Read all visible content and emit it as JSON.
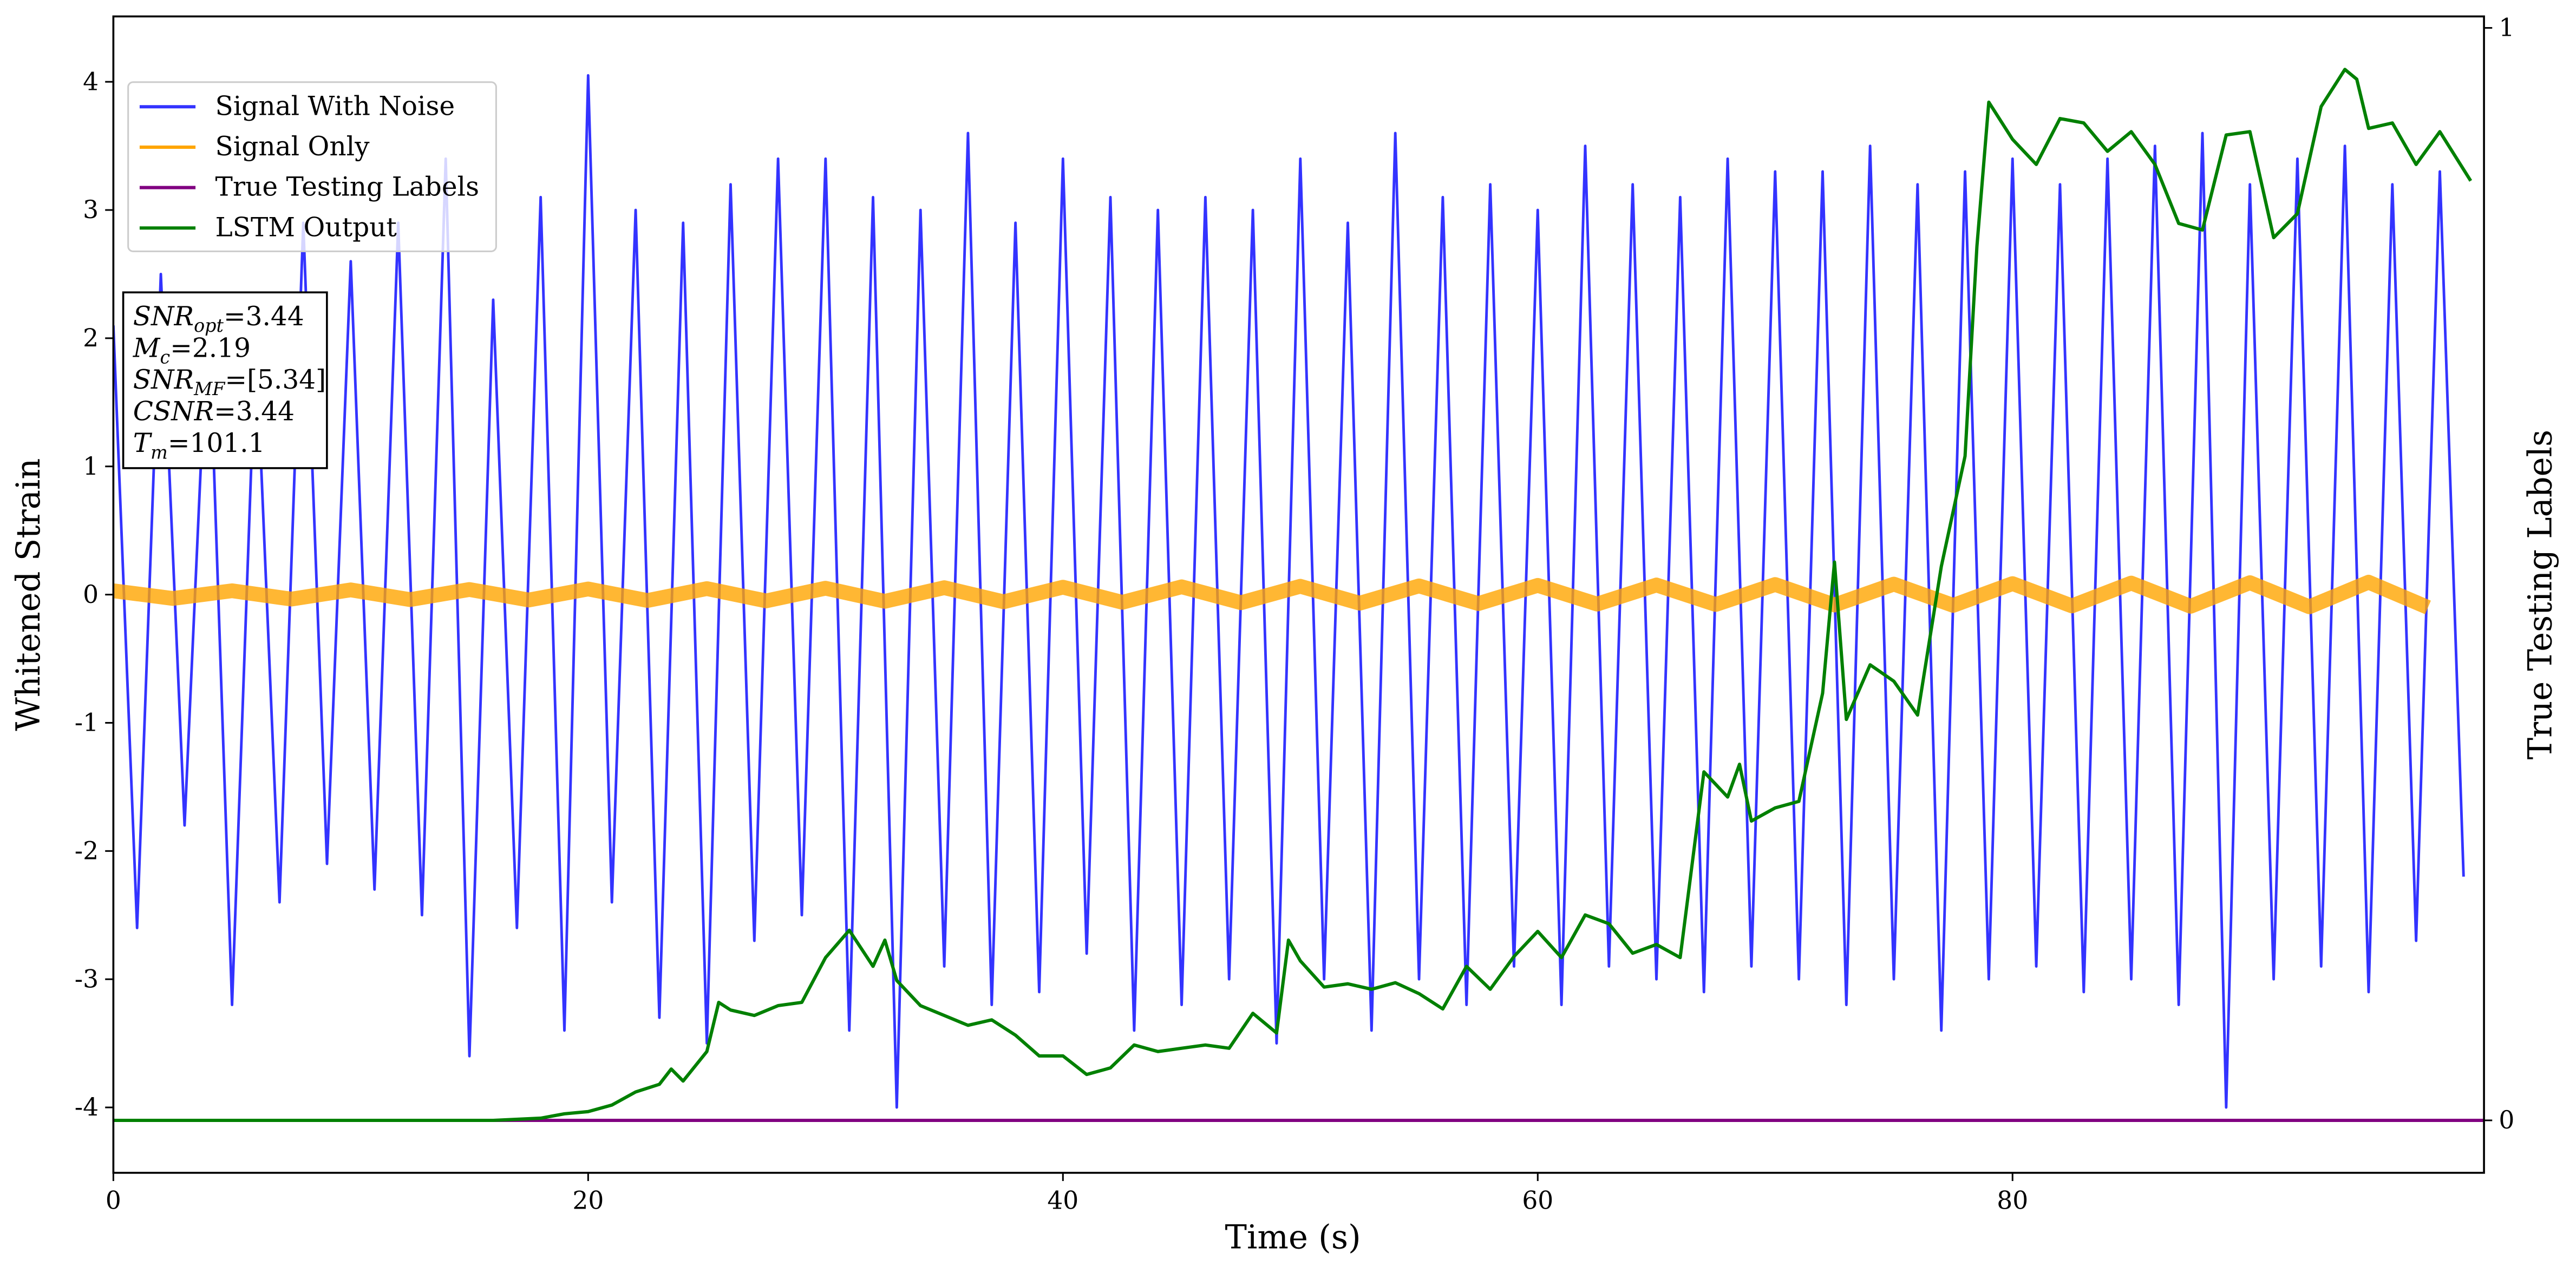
{
  "chart_data": {
    "type": "line",
    "xlabel": "Time (s)",
    "ylabel": "Whitened Strain",
    "y2label": "True Testing Labels",
    "xlim": [
      0,
      99.86
    ],
    "xticks": [
      0,
      20,
      40,
      60,
      80
    ],
    "ylim": [
      -4.51,
      4.51
    ],
    "yticks": [
      -4,
      -3,
      -2,
      -1,
      0,
      1,
      2,
      3,
      4
    ],
    "y2lim": [
      -0.048,
      1.0105
    ],
    "y2ticks": [
      0,
      1
    ],
    "legend": "upper left",
    "annotations": [
      {
        "name": "SNR",
        "sub": "opt",
        "value": "=3.44"
      },
      {
        "name": "M",
        "sub": "c",
        "value": "=2.19"
      },
      {
        "name": "SNR",
        "sub": "MF",
        "value": "=[5.34]"
      },
      {
        "name": "CSNR",
        "value": "=3.44"
      },
      {
        "name": "T",
        "sub": "m",
        "value": "=101.1"
      }
    ],
    "series": [
      {
        "name": "Signal With Noise",
        "color": "#3333ff",
        "x": [
          0,
          1,
          2,
          3,
          4,
          5,
          6,
          7,
          8,
          9,
          10,
          11,
          12,
          13,
          14,
          15,
          16,
          17,
          18,
          19,
          20,
          21,
          22,
          23,
          24,
          25,
          26,
          27,
          28,
          29,
          30,
          31,
          32,
          33,
          34,
          35,
          36,
          37,
          38,
          39,
          40,
          41,
          42,
          43,
          44,
          45,
          46,
          47,
          48,
          49,
          50,
          51,
          52,
          53,
          54,
          55,
          56,
          57,
          58,
          59,
          60,
          61,
          62,
          63,
          64,
          65,
          66,
          67,
          68,
          69,
          70,
          71,
          72,
          73,
          74,
          75,
          76,
          77,
          78,
          79,
          80,
          81,
          82,
          83,
          84,
          85,
          86,
          87,
          88,
          89,
          90,
          91,
          92,
          93,
          94,
          95,
          96,
          97,
          98,
          99
        ],
        "values": [
          2.1,
          -2.6,
          2.5,
          -1.8,
          2.3,
          -3.2,
          2.0,
          -2.4,
          2.9,
          -2.1,
          2.6,
          -2.3,
          2.9,
          -2.5,
          3.4,
          -3.6,
          2.3,
          -2.6,
          3.1,
          -3.4,
          4.05,
          -2.4,
          3.0,
          -3.3,
          2.9,
          -3.5,
          3.2,
          -2.7,
          3.4,
          -2.5,
          3.4,
          -3.4,
          3.1,
          -4.0,
          3.0,
          -2.9,
          3.6,
          -3.2,
          2.9,
          -3.1,
          3.4,
          -2.8,
          3.1,
          -3.4,
          3.0,
          -3.2,
          3.1,
          -3.0,
          3.0,
          -3.5,
          3.4,
          -3.0,
          2.9,
          -3.4,
          3.6,
          -3.0,
          3.1,
          -3.2,
          3.2,
          -2.9,
          3.0,
          -3.2,
          3.5,
          -2.9,
          3.2,
          -3.0,
          3.1,
          -3.1,
          3.4,
          -2.9,
          3.3,
          -3.0,
          3.3,
          -3.2,
          3.5,
          -3.0,
          3.2,
          -3.4,
          3.3,
          -3.0,
          3.4,
          -2.9,
          3.2,
          -3.1,
          3.4,
          -3.0,
          3.5,
          -3.2,
          3.6,
          -4.0,
          3.2,
          -3.0,
          3.4,
          -2.9,
          3.5,
          -3.1,
          3.2,
          -2.7,
          3.3,
          -2.2
        ]
      },
      {
        "name": "Signal Only",
        "color": "#ffa500",
        "x": [
          0,
          2.5,
          5,
          7.5,
          10,
          12.5,
          15,
          17.5,
          20,
          22.5,
          25,
          27.5,
          30,
          32.5,
          35,
          37.5,
          40,
          42.5,
          45,
          47.5,
          50,
          52.5,
          55,
          57.5,
          60,
          62.5,
          65,
          67.5,
          70,
          72.5,
          75,
          77.5,
          80,
          82.5,
          85,
          87.5,
          90,
          92.5,
          95,
          97.5
        ],
        "values": [
          0.03,
          -0.03,
          0.03,
          -0.035,
          0.037,
          -0.039,
          0.04,
          -0.042,
          0.044,
          -0.046,
          0.047,
          -0.049,
          0.05,
          -0.052,
          0.054,
          -0.056,
          0.058,
          -0.06,
          0.061,
          -0.063,
          0.065,
          -0.067,
          0.068,
          -0.07,
          0.072,
          -0.074,
          0.075,
          -0.077,
          0.079,
          -0.081,
          0.082,
          -0.084,
          0.086,
          -0.088,
          0.09,
          -0.091,
          0.093,
          -0.095,
          0.097,
          -0.1
        ]
      },
      {
        "name": "True Testing Labels",
        "color": "#800080",
        "axis": "y2",
        "x": [
          0,
          99.86
        ],
        "values": [
          0,
          0
        ]
      },
      {
        "name": "LSTM Output",
        "color": "#008000",
        "axis": "y2",
        "x": [
          0,
          16,
          18,
          19,
          20,
          21,
          22,
          23,
          23.5,
          24,
          25,
          25.5,
          26,
          27,
          28,
          29,
          30,
          31,
          32,
          32.5,
          33,
          34,
          35,
          36,
          37,
          38,
          39,
          40,
          41,
          42,
          43,
          44,
          45,
          46,
          47,
          48,
          49,
          49.5,
          50,
          51,
          52,
          53,
          54,
          55,
          56,
          57,
          58,
          59,
          60,
          61,
          62,
          63,
          64,
          65,
          66,
          67,
          68,
          68.5,
          69,
          70,
          71,
          72,
          72.5,
          73,
          74,
          75,
          76,
          77,
          78,
          78.5,
          79,
          80,
          81,
          82,
          83,
          84,
          85,
          86,
          87,
          88,
          89,
          90,
          91,
          92,
          93,
          94,
          94.5,
          95,
          96,
          97,
          98,
          99.3
        ],
        "values": [
          0,
          0,
          0.002,
          0.006,
          0.008,
          0.014,
          0.026,
          0.033,
          0.047,
          0.036,
          0.063,
          0.108,
          0.101,
          0.096,
          0.105,
          0.108,
          0.149,
          0.174,
          0.141,
          0.165,
          0.128,
          0.105,
          0.096,
          0.087,
          0.092,
          0.078,
          0.059,
          0.059,
          0.042,
          0.048,
          0.069,
          0.063,
          0.066,
          0.069,
          0.066,
          0.098,
          0.08,
          0.165,
          0.146,
          0.122,
          0.125,
          0.12,
          0.126,
          0.116,
          0.102,
          0.141,
          0.12,
          0.15,
          0.173,
          0.149,
          0.188,
          0.18,
          0.153,
          0.161,
          0.149,
          0.319,
          0.296,
          0.326,
          0.274,
          0.286,
          0.292,
          0.391,
          0.511,
          0.367,
          0.417,
          0.402,
          0.371,
          0.507,
          0.608,
          0.8,
          0.932,
          0.898,
          0.875,
          0.917,
          0.913,
          0.887,
          0.905,
          0.875,
          0.821,
          0.815,
          0.902,
          0.905,
          0.808,
          0.83,
          0.928,
          0.962,
          0.953,
          0.908,
          0.913,
          0.875,
          0.905,
          0.86
        ]
      }
    ]
  }
}
